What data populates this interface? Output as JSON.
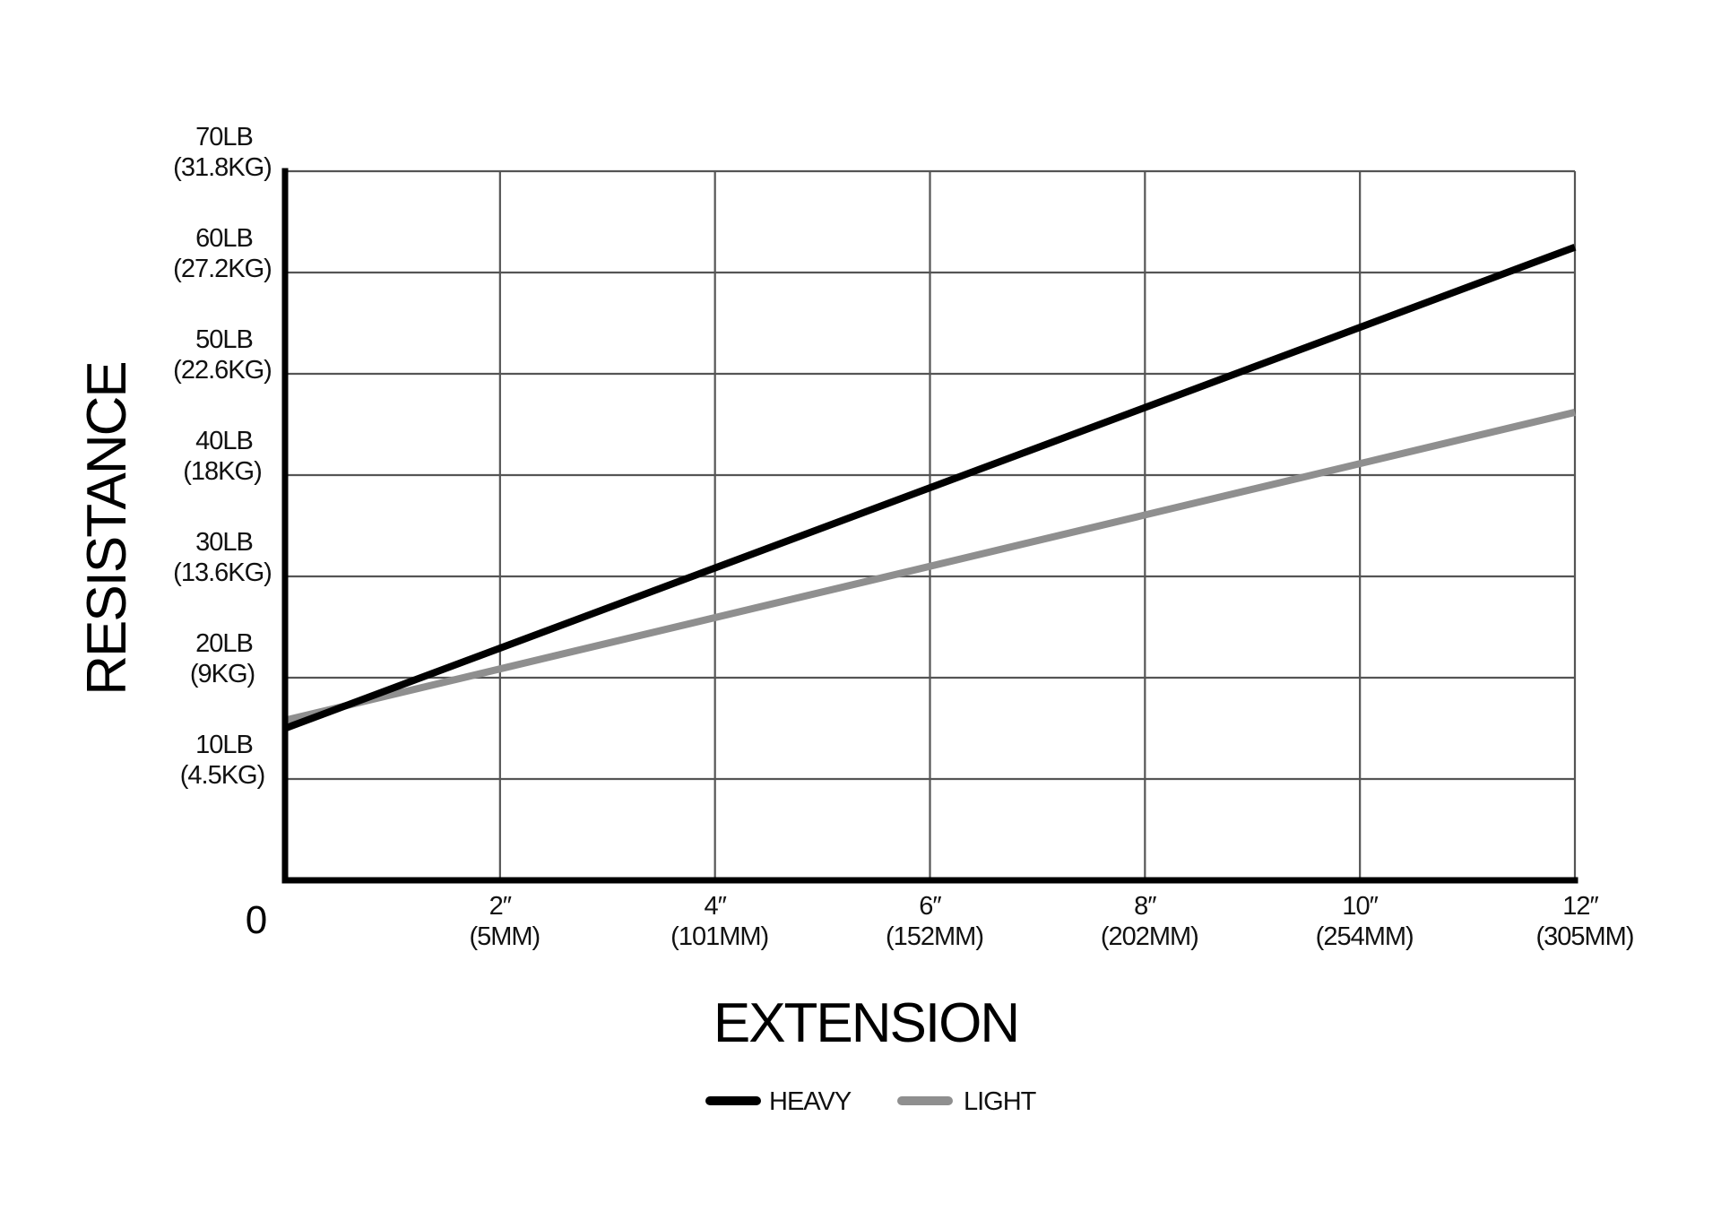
{
  "chart_data": {
    "type": "line",
    "xlabel": "EXTENSION",
    "ylabel": "RESISTANCE",
    "origin_label": "0",
    "xlim": [
      0,
      12
    ],
    "ylim": [
      0,
      70
    ],
    "grid": true,
    "legend_position": "bottom-center",
    "x_ticks": [
      {
        "value": 2,
        "label": "2″",
        "sublabel": "(5MM)"
      },
      {
        "value": 4,
        "label": "4″",
        "sublabel": "(101MM)"
      },
      {
        "value": 6,
        "label": "6″",
        "sublabel": "(152MM)"
      },
      {
        "value": 8,
        "label": "8″",
        "sublabel": "(202MM)"
      },
      {
        "value": 10,
        "label": "10″",
        "sublabel": "(254MM)"
      },
      {
        "value": 12,
        "label": "12″",
        "sublabel": "(305MM)"
      }
    ],
    "y_ticks": [
      {
        "value": 10,
        "label": "10LB",
        "sublabel": "(4.5KG)"
      },
      {
        "value": 20,
        "label": "20LB",
        "sublabel": "(9KG)"
      },
      {
        "value": 30,
        "label": "30LB",
        "sublabel": "(13.6KG)"
      },
      {
        "value": 40,
        "label": "40LB",
        "sublabel": "(18KG)"
      },
      {
        "value": 50,
        "label": "50LB",
        "sublabel": "(22.6KG)"
      },
      {
        "value": 60,
        "label": "60LB",
        "sublabel": "(27.2KG)"
      },
      {
        "value": 70,
        "label": "70LB",
        "sublabel": "(31.8KG)"
      }
    ],
    "series": [
      {
        "name": "HEAVY",
        "color": "#000000",
        "x": [
          0,
          12
        ],
        "y": [
          15,
          62.5
        ]
      },
      {
        "name": "LIGHT",
        "color": "#8f8f8f",
        "x": [
          0,
          12
        ],
        "y": [
          15.8,
          46.2
        ]
      }
    ]
  }
}
